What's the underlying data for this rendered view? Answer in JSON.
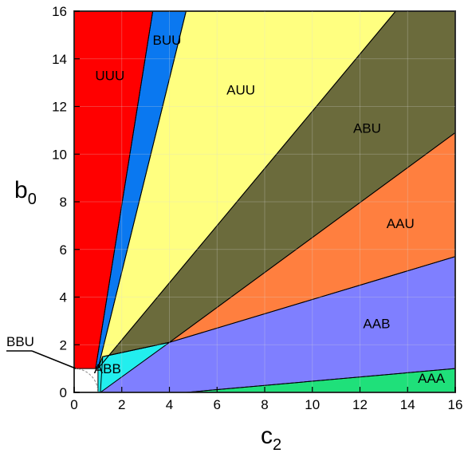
{
  "chart_data": {
    "type": "area",
    "xlabel": "c",
    "xlabel_sub": "2",
    "ylabel": "b",
    "ylabel_sub": "0",
    "xlim": [
      0,
      16
    ],
    "ylim": [
      0,
      16
    ],
    "xticks": [
      "0",
      "2",
      "4",
      "6",
      "8",
      "10",
      "12",
      "14",
      "16"
    ],
    "yticks": [
      "0",
      "2",
      "4",
      "6",
      "8",
      "10",
      "12",
      "14",
      "16"
    ],
    "grid": true,
    "annotation": "BBU",
    "regions": [
      {
        "name": "UUU",
        "color": "#ff0000",
        "label_at": [
          1.5,
          13.1
        ],
        "polygon": [
          [
            0,
            1
          ],
          [
            0,
            16
          ],
          [
            3.3,
            16
          ],
          [
            0.9,
            1
          ]
        ]
      },
      {
        "name": "BUU",
        "color": "#0a78f0",
        "label_at": [
          3.9,
          14.6
        ],
        "polygon": [
          [
            0.9,
            1
          ],
          [
            3.3,
            16
          ],
          [
            4.7,
            16
          ],
          [
            1.0,
            1
          ]
        ]
      },
      {
        "name": "AUU",
        "color": "#ffff80",
        "label_at": [
          7.0,
          12.5
        ],
        "polygon": [
          [
            1.0,
            1
          ],
          [
            4.7,
            16
          ],
          [
            13.5,
            16
          ],
          [
            1.0,
            1
          ]
        ]
      },
      {
        "name": "ABU",
        "color": "#6b6b3c",
        "label_at": [
          12.3,
          10.9
        ],
        "polygon": [
          [
            1.0,
            1
          ],
          [
            13.5,
            16
          ],
          [
            16,
            16
          ],
          [
            16,
            10.9
          ],
          [
            4.0,
            2.1
          ],
          [
            1.2,
            1.5
          ]
        ]
      },
      {
        "name": "AAU",
        "color": "#ff7f3f",
        "label_at": [
          13.7,
          6.9
        ],
        "polygon": [
          [
            4.0,
            2.1
          ],
          [
            16,
            10.9
          ],
          [
            16,
            5.7
          ]
        ]
      },
      {
        "name": "AAB",
        "color": "#7f7fff",
        "label_at": [
          12.7,
          2.7
        ],
        "polygon": [
          [
            1.2,
            1.5
          ],
          [
            4.0,
            2.1
          ],
          [
            16,
            5.7
          ],
          [
            16,
            1.0
          ],
          [
            4.7,
            0
          ],
          [
            1.1,
            0
          ]
        ]
      },
      {
        "name": "ABB",
        "color": "#22eeee",
        "label_at": [
          1.4,
          0.8
        ],
        "polygon": [
          [
            1.0,
            1
          ],
          [
            1.2,
            1.5
          ],
          [
            4.0,
            2.1
          ],
          [
            1.1,
            0
          ],
          [
            1.0,
            0
          ]
        ]
      },
      {
        "name": "AAA",
        "color": "#1fe07a",
        "label_at": [
          15.0,
          0.4
        ],
        "polygon": [
          [
            4.7,
            0
          ],
          [
            16,
            1.0
          ],
          [
            16,
            0
          ]
        ]
      },
      {
        "name": "BBU",
        "color": "#ffffff",
        "label_at": null,
        "polygon": [
          [
            0,
            1
          ],
          [
            0.5,
            0.9
          ],
          [
            0.9,
            0.5
          ],
          [
            1.0,
            0
          ],
          [
            0,
            0
          ]
        ]
      }
    ]
  }
}
